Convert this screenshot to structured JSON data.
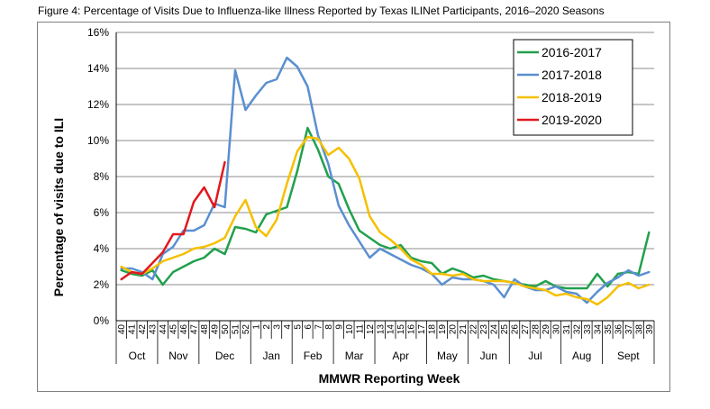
{
  "title": "Figure 4: Percentage of Visits Due to Influenza-like Illness Reported by Texas ILINet Participants, 2016–2020 Seasons",
  "chart_data": {
    "type": "line",
    "ylabel": "Percentage of visits due to ILI",
    "xlabel": "MMWR Reporting Week",
    "ylim": [
      0,
      16
    ],
    "yticks": [
      "0%",
      "2%",
      "4%",
      "6%",
      "8%",
      "10%",
      "12%",
      "14%",
      "16%"
    ],
    "ytick_values": [
      0,
      2,
      4,
      6,
      8,
      10,
      12,
      14,
      16
    ],
    "grid": "horizontal",
    "legend_position": "top-right",
    "weeks": [
      "40",
      "41",
      "42",
      "43",
      "44",
      "45",
      "46",
      "47",
      "48",
      "49",
      "50",
      "51",
      "52",
      "1",
      "2",
      "3",
      "4",
      "5",
      "6",
      "7",
      "8",
      "9",
      "10",
      "11",
      "12",
      "13",
      "14",
      "15",
      "16",
      "17",
      "18",
      "19",
      "20",
      "21",
      "22",
      "23",
      "24",
      "25",
      "26",
      "27",
      "28",
      "29",
      "30",
      "31",
      "32",
      "33",
      "34",
      "35",
      "36",
      "37",
      "38",
      "39"
    ],
    "months": [
      {
        "label": "Oct",
        "start": 0,
        "end": 4
      },
      {
        "label": "Nov",
        "start": 4,
        "end": 8
      },
      {
        "label": "Dec",
        "start": 8,
        "end": 13
      },
      {
        "label": "Jan",
        "start": 13,
        "end": 17
      },
      {
        "label": "Feb",
        "start": 17,
        "end": 21
      },
      {
        "label": "Mar",
        "start": 21,
        "end": 25
      },
      {
        "label": "Apr",
        "start": 25,
        "end": 30
      },
      {
        "label": "May",
        "start": 30,
        "end": 34
      },
      {
        "label": "Jun",
        "start": 34,
        "end": 38
      },
      {
        "label": "Jul",
        "start": 38,
        "end": 43
      },
      {
        "label": "Aug",
        "start": 43,
        "end": 47
      },
      {
        "label": "Sept",
        "start": 47,
        "end": 52
      }
    ],
    "series": [
      {
        "name": "2016-2017",
        "color": "#21a04d",
        "values": [
          2.8,
          2.6,
          2.5,
          2.8,
          2.0,
          2.7,
          3.0,
          3.3,
          3.5,
          4.0,
          3.7,
          5.2,
          5.1,
          4.9,
          5.9,
          6.1,
          6.3,
          8.3,
          10.7,
          9.5,
          8.0,
          7.6,
          6.2,
          5.0,
          4.6,
          4.2,
          4.0,
          4.2,
          3.5,
          3.3,
          3.2,
          2.6,
          2.9,
          2.7,
          2.4,
          2.5,
          2.3,
          2.2,
          2.1,
          2.0,
          1.9,
          2.2,
          1.9,
          1.8,
          1.8,
          1.8,
          2.6,
          1.9,
          2.6,
          2.7,
          2.6,
          4.9
        ]
      },
      {
        "name": "2017-2018",
        "color": "#5a8fd0",
        "values": [
          2.9,
          2.9,
          2.7,
          2.3,
          3.7,
          4.1,
          5.0,
          5.0,
          5.3,
          6.5,
          6.3,
          13.9,
          11.7,
          12.5,
          13.2,
          13.4,
          14.6,
          14.1,
          13.0,
          10.3,
          8.7,
          6.4,
          5.3,
          4.4,
          3.5,
          4.0,
          3.7,
          3.4,
          3.1,
          2.9,
          2.6,
          2.0,
          2.4,
          2.3,
          2.3,
          2.2,
          2.0,
          1.3,
          2.3,
          1.9,
          1.7,
          1.7,
          1.9,
          1.6,
          1.5,
          1.0,
          1.6,
          2.1,
          2.4,
          2.8,
          2.5,
          2.7
        ]
      },
      {
        "name": "2018-2019",
        "color": "#f5c000",
        "values": [
          3.0,
          2.7,
          2.6,
          2.9,
          3.3,
          3.5,
          3.7,
          4.0,
          4.1,
          4.3,
          4.6,
          5.8,
          6.7,
          5.2,
          4.7,
          5.6,
          7.6,
          9.4,
          10.2,
          10.1,
          9.2,
          9.6,
          9.0,
          7.9,
          5.8,
          4.9,
          4.5,
          4.0,
          3.4,
          3.1,
          2.6,
          2.6,
          2.5,
          2.6,
          2.3,
          2.2,
          2.2,
          2.2,
          2.1,
          1.9,
          1.8,
          1.7,
          1.4,
          1.5,
          1.3,
          1.2,
          0.9,
          1.3,
          1.9,
          2.1,
          1.8,
          2.0
        ]
      },
      {
        "name": "2019-2020",
        "color": "#e2191c",
        "values": [
          2.3,
          2.7,
          2.6,
          3.2,
          3.8,
          4.8,
          4.8,
          6.6,
          7.4,
          6.3,
          8.8
        ]
      }
    ]
  }
}
